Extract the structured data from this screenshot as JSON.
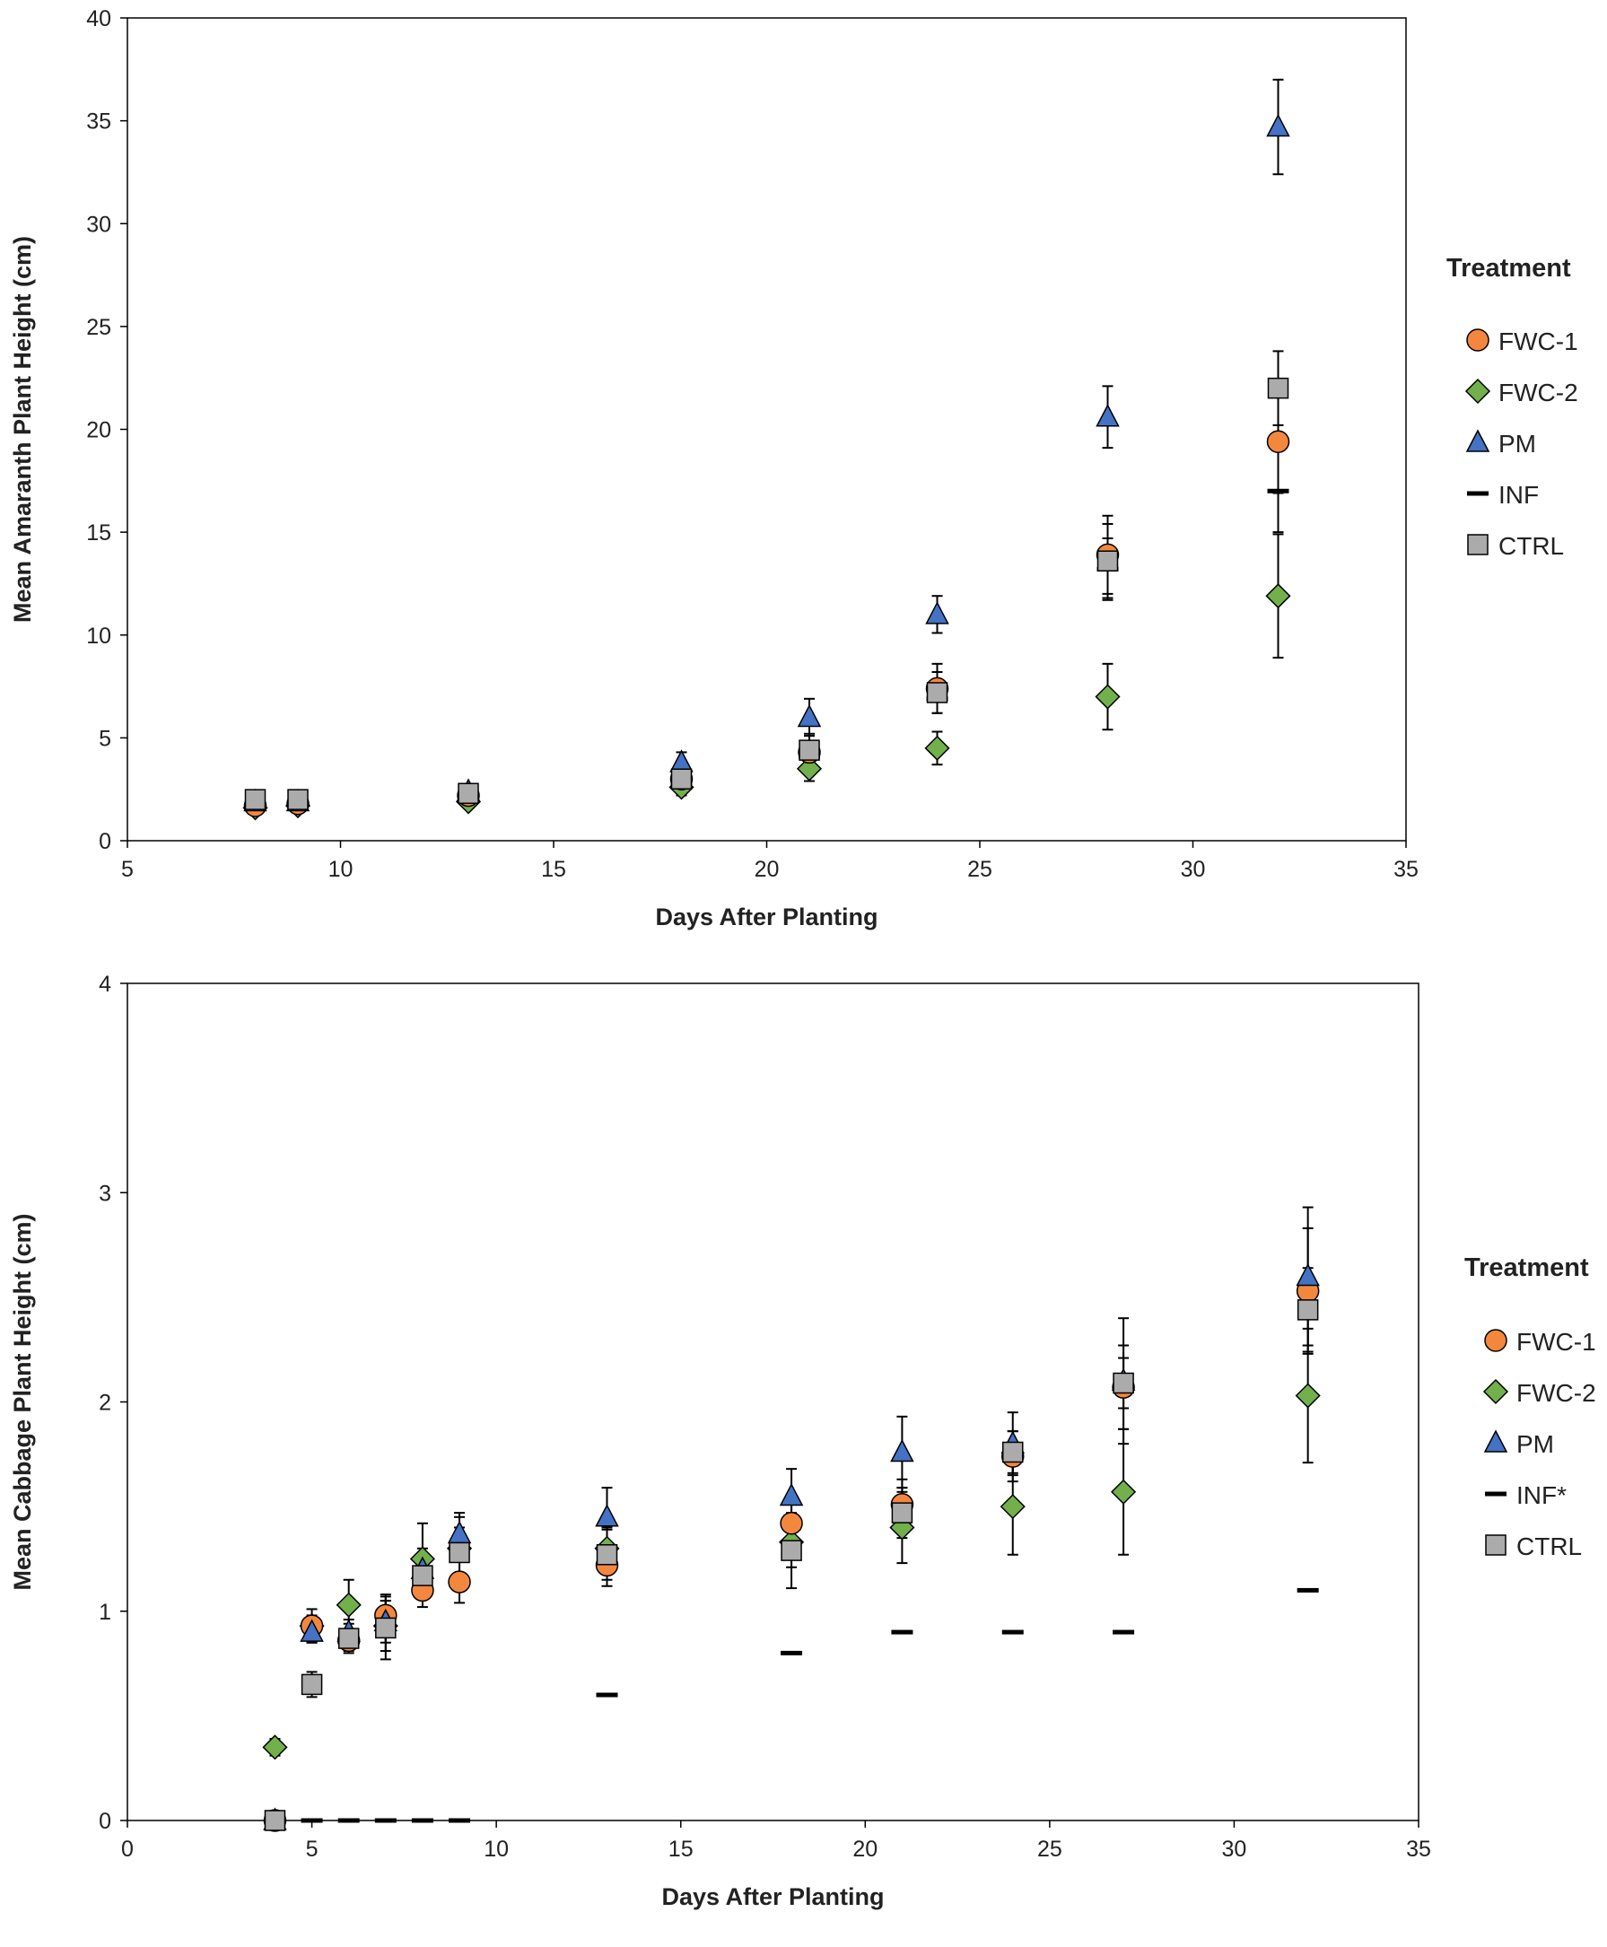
{
  "chart_data": [
    {
      "type": "scatter",
      "title": "",
      "xlabel": "Days After Planting",
      "ylabel": "Mean Amaranth Plant Height (cm)",
      "xlim": [
        5,
        35
      ],
      "ylim": [
        0,
        40
      ],
      "x_ticks": [
        5,
        10,
        15,
        20,
        25,
        30,
        35
      ],
      "y_ticks": [
        0,
        5,
        10,
        15,
        20,
        25,
        30,
        35,
        40
      ],
      "grid": false,
      "legend_title": "Treatment",
      "legend_position": "right",
      "series": [
        {
          "name": "FWC-1",
          "marker": "circle",
          "color": "#F4873E",
          "points": [
            [
              8,
              1.7,
              0.2
            ],
            [
              9,
              1.8,
              0.2
            ],
            [
              13,
              2.2,
              0.3
            ],
            [
              18,
              3.0,
              0.5
            ],
            [
              21,
              4.3,
              0.8
            ],
            [
              24,
              7.4,
              1.2
            ],
            [
              28,
              13.9,
              1.9
            ],
            [
              32,
              19.4,
              2.5
            ]
          ]
        },
        {
          "name": "FWC-2",
          "marker": "diamond",
          "color": "#72B04B",
          "points": [
            [
              8,
              1.6,
              0.2
            ],
            [
              9,
              1.7,
              0.2
            ],
            [
              13,
              1.9,
              0.3
            ],
            [
              18,
              2.6,
              0.4
            ],
            [
              21,
              3.5,
              0.6
            ],
            [
              24,
              4.5,
              0.8
            ],
            [
              28,
              7.0,
              1.6
            ],
            [
              32,
              11.9,
              3.0
            ]
          ]
        },
        {
          "name": "PM",
          "marker": "triangle",
          "color": "#4472C4",
          "points": [
            [
              8,
              1.9,
              0.2
            ],
            [
              9,
              1.9,
              0.2
            ],
            [
              13,
              2.4,
              0.3
            ],
            [
              18,
              3.8,
              0.5
            ],
            [
              21,
              6.0,
              0.9
            ],
            [
              24,
              11.0,
              0.9
            ],
            [
              28,
              20.6,
              1.5
            ],
            [
              32,
              34.7,
              2.3
            ]
          ]
        },
        {
          "name": "INF",
          "marker": "dash",
          "color": "#000000",
          "points": [
            [
              8,
              1.6,
              0.2
            ],
            [
              9,
              1.7,
              0.2
            ],
            [
              13,
              2.0,
              0.3
            ],
            [
              18,
              2.8,
              0.4
            ],
            [
              21,
              4.1,
              0.7
            ],
            [
              24,
              6.9,
              0.7
            ],
            [
              28,
              13.2,
              1.5
            ],
            [
              32,
              17.0,
              2.0
            ]
          ]
        },
        {
          "name": "CTRL",
          "marker": "square",
          "color": "#ABABAB",
          "points": [
            [
              8,
              2.0,
              0.2
            ],
            [
              9,
              2.0,
              0.2
            ],
            [
              13,
              2.3,
              0.3
            ],
            [
              18,
              3.0,
              0.5
            ],
            [
              21,
              4.4,
              0.8
            ],
            [
              24,
              7.2,
              1.0
            ],
            [
              28,
              13.6,
              1.8
            ],
            [
              32,
              22.0,
              1.8
            ]
          ]
        }
      ]
    },
    {
      "type": "scatter",
      "title": "",
      "xlabel": "Days After Planting",
      "ylabel": "Mean Cabbage Plant Height (cm)",
      "xlim": [
        0,
        35
      ],
      "ylim": [
        0,
        4
      ],
      "x_ticks": [
        0,
        5,
        10,
        15,
        20,
        25,
        30,
        35
      ],
      "y_ticks": [
        0,
        1,
        2,
        3,
        4
      ],
      "grid": false,
      "legend_title": "Treatment",
      "legend_position": "right",
      "series": [
        {
          "name": "FWC-1",
          "marker": "circle",
          "color": "#F4873E",
          "points": [
            [
              4,
              0.0,
              0
            ],
            [
              5,
              0.93,
              0.05
            ],
            [
              6,
              0.86,
              0.05
            ],
            [
              7,
              0.98,
              0.1
            ],
            [
              8,
              1.1,
              0.08
            ],
            [
              9,
              1.14,
              0.1
            ],
            [
              13,
              1.22,
              0.1
            ],
            [
              18,
              1.42,
              0.12
            ],
            [
              21,
              1.51,
              0.12
            ],
            [
              24,
              1.74,
              0.12
            ],
            [
              27,
              2.07,
              0.2
            ],
            [
              32,
              2.53,
              0.3
            ]
          ]
        },
        {
          "name": "FWC-2",
          "marker": "diamond",
          "color": "#72B04B",
          "points": [
            [
              4,
              0.35,
              0.04
            ],
            [
              5,
              0.93,
              0.08
            ],
            [
              6,
              1.03,
              0.12
            ],
            [
              7,
              0.93,
              0.12
            ],
            [
              8,
              1.25,
              0.17
            ],
            [
              9,
              1.3,
              0.15
            ],
            [
              13,
              1.3,
              0.1
            ],
            [
              18,
              1.33,
              0.12
            ],
            [
              21,
              1.4,
              0.17
            ],
            [
              24,
              1.5,
              0.23
            ],
            [
              27,
              1.57,
              0.3
            ],
            [
              32,
              2.03,
              0.32
            ]
          ]
        },
        {
          "name": "PM",
          "marker": "triangle",
          "color": "#4472C4",
          "points": [
            [
              4,
              0.0,
              0
            ],
            [
              5,
              0.9,
              0.05
            ],
            [
              6,
              0.9,
              0.06
            ],
            [
              7,
              0.95,
              0.1
            ],
            [
              8,
              1.2,
              0.1
            ],
            [
              9,
              1.37,
              0.1
            ],
            [
              13,
              1.45,
              0.14
            ],
            [
              18,
              1.55,
              0.13
            ],
            [
              21,
              1.76,
              0.17
            ],
            [
              24,
              1.8,
              0.15
            ],
            [
              27,
              2.1,
              0.3
            ],
            [
              32,
              2.6,
              0.33
            ]
          ]
        },
        {
          "name": "INF*",
          "marker": "dash",
          "color": "#000000",
          "points": [
            [
              4,
              0.0,
              0
            ],
            [
              5,
              0.0,
              0
            ],
            [
              6,
              0.0,
              0
            ],
            [
              7,
              0.0,
              0
            ],
            [
              8,
              0.0,
              0
            ],
            [
              9,
              0.0,
              0
            ],
            [
              13,
              0.6,
              0
            ],
            [
              18,
              0.8,
              0
            ],
            [
              21,
              0.9,
              0
            ],
            [
              24,
              0.9,
              0
            ],
            [
              27,
              0.9,
              0
            ],
            [
              32,
              1.1,
              0
            ]
          ]
        },
        {
          "name": "CTRL",
          "marker": "square",
          "color": "#ABABAB",
          "points": [
            [
              4,
              0.0,
              0
            ],
            [
              5,
              0.65,
              0.06
            ],
            [
              6,
              0.87,
              0.07
            ],
            [
              7,
              0.92,
              0.15
            ],
            [
              8,
              1.17,
              0.1
            ],
            [
              9,
              1.28,
              0.12
            ],
            [
              13,
              1.27,
              0.12
            ],
            [
              18,
              1.29,
              0.18
            ],
            [
              21,
              1.47,
              0.12
            ],
            [
              24,
              1.76,
              0.1
            ],
            [
              27,
              2.09,
              0.12
            ],
            [
              32,
              2.44,
              0.2
            ]
          ]
        }
      ]
    }
  ]
}
